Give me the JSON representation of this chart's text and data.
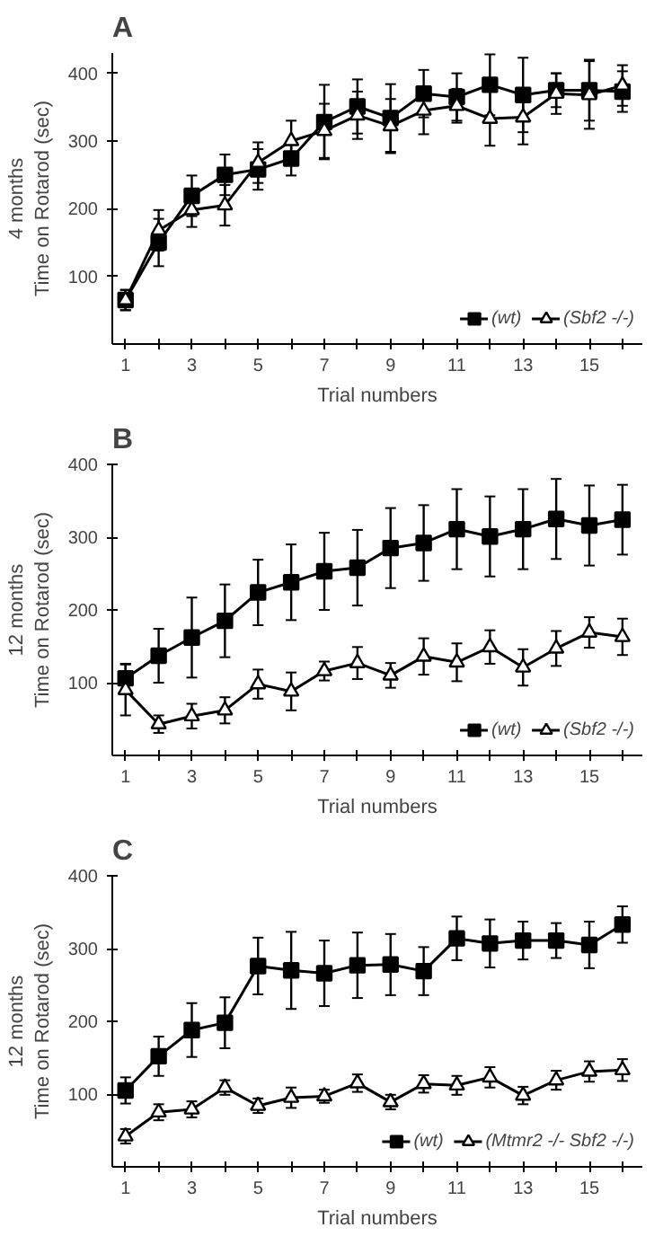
{
  "chart_data": [
    {
      "type": "line",
      "title": "A",
      "xlabel": "Trial numbers",
      "ylabel": "4 months\nTime on Rotarod (sec)",
      "x": [
        1,
        2,
        3,
        4,
        5,
        6,
        7,
        8,
        9,
        10,
        11,
        12,
        13,
        14,
        15,
        16
      ],
      "xlim": [
        0.6,
        16.6
      ],
      "ylim": [
        0,
        430
      ],
      "xticks": [
        1,
        {
          "value": 2,
          "label": null
        },
        3,
        {
          "value": 4,
          "label": null
        },
        5,
        {
          "value": 6,
          "label": null
        },
        7,
        {
          "value": 8,
          "label": null
        },
        9,
        {
          "value": 10,
          "label": null
        },
        11,
        {
          "value": 12,
          "label": null
        },
        13,
        {
          "value": 14,
          "label": null
        },
        15,
        {
          "value": 16,
          "label": null
        }
      ],
      "yticks": [
        100,
        200,
        300,
        400
      ],
      "legend": "bottom right",
      "grid": false,
      "series": [
        {
          "name": "(wt)",
          "color": "#000000",
          "marker": "square",
          "values": [
            65,
            150,
            219,
            250,
            258,
            274,
            328,
            351,
            334,
            370,
            365,
            383,
            368,
            375,
            375,
            373
          ],
          "errors": [
            15,
            35,
            30,
            30,
            30,
            25,
            55,
            40,
            50,
            35,
            35,
            45,
            55,
            25,
            45,
            30
          ]
        },
        {
          "name": "(Sbf2 -/-)",
          "color": "#000000",
          "marker": "triangle",
          "values": [
            65,
            168,
            198,
            205,
            268,
            300,
            315,
            338,
            322,
            345,
            352,
            333,
            335,
            370,
            368,
            382
          ],
          "errors": [
            15,
            30,
            25,
            30,
            30,
            30,
            40,
            35,
            40,
            35,
            25,
            40,
            40,
            30,
            50,
            30
          ]
        }
      ]
    },
    {
      "type": "line",
      "title": "B",
      "xlabel": "Trial numbers",
      "ylabel": "12 months\nTime on Rotarod (sec)",
      "x": [
        1,
        2,
        3,
        4,
        5,
        6,
        7,
        8,
        9,
        10,
        11,
        12,
        13,
        14,
        15,
        16
      ],
      "xlim": [
        0.6,
        16.6
      ],
      "ylim": [
        0,
        400
      ],
      "xticks": [
        1,
        {
          "value": 2,
          "label": null
        },
        3,
        {
          "value": 4,
          "label": null
        },
        5,
        {
          "value": 6,
          "label": null
        },
        7,
        {
          "value": 8,
          "label": null
        },
        9,
        {
          "value": 10,
          "label": null
        },
        11,
        {
          "value": 12,
          "label": null
        },
        13,
        {
          "value": 14,
          "label": null
        },
        15,
        {
          "value": 16,
          "label": null
        }
      ],
      "yticks": [
        100,
        200,
        300,
        400
      ],
      "legend": "bottom right",
      "grid": false,
      "series": [
        {
          "name": "(wt)",
          "color": "#000000",
          "marker": "square",
          "values": [
            106,
            137,
            162,
            185,
            224,
            238,
            253,
            258,
            285,
            292,
            311,
            301,
            311,
            325,
            316,
            324
          ],
          "errors": [
            20,
            37,
            55,
            50,
            45,
            52,
            53,
            52,
            55,
            52,
            55,
            55,
            55,
            55,
            55,
            48
          ]
        },
        {
          "name": "(Sbf2 -/-)",
          "color": "#000000",
          "marker": "triangle",
          "values": [
            90,
            43,
            54,
            62,
            98,
            88,
            116,
            127,
            110,
            136,
            128,
            149,
            121,
            147,
            169,
            163
          ],
          "errors": [
            35,
            12,
            17,
            18,
            20,
            26,
            13,
            22,
            17,
            25,
            26,
            23,
            25,
            24,
            21,
            25
          ]
        }
      ]
    },
    {
      "type": "line",
      "title": "C",
      "xlabel": "Trial numbers",
      "ylabel": "12 months\nTime on Rotarod (sec)",
      "x": [
        1,
        2,
        3,
        4,
        5,
        6,
        7,
        8,
        9,
        10,
        11,
        12,
        13,
        14,
        15,
        16
      ],
      "xlim": [
        0.6,
        16.6
      ],
      "ylim": [
        0,
        400
      ],
      "xticks": [
        1,
        {
          "value": 2,
          "label": null
        },
        3,
        {
          "value": 4,
          "label": null
        },
        5,
        {
          "value": 6,
          "label": null
        },
        7,
        {
          "value": 8,
          "label": null
        },
        9,
        {
          "value": 10,
          "label": null
        },
        11,
        {
          "value": 12,
          "label": null
        },
        13,
        {
          "value": 14,
          "label": null
        },
        15,
        {
          "value": 16,
          "label": null
        }
      ],
      "yticks": [
        100,
        200,
        300,
        400
      ],
      "legend": "bottom right",
      "grid": false,
      "series": [
        {
          "name": "(wt)",
          "color": "#000000",
          "marker": "square",
          "values": [
            105,
            152,
            188,
            198,
            276,
            270,
            266,
            277,
            278,
            269,
            314,
            307,
            311,
            311,
            305,
            333
          ],
          "errors": [
            18,
            27,
            37,
            35,
            39,
            53,
            45,
            45,
            42,
            33,
            30,
            33,
            26,
            24,
            32,
            25
          ]
        },
        {
          "name": "(Mtmr2 -/- Sbf2 -/-)",
          "color": "#000000",
          "marker": "triangle",
          "values": [
            42,
            75,
            79,
            109,
            84,
            95,
            97,
            115,
            89,
            114,
            112,
            123,
            98,
            119,
            131,
            133
          ],
          "errors": [
            10,
            11,
            11,
            10,
            10,
            14,
            9,
            12,
            10,
            12,
            13,
            14,
            12,
            13,
            14,
            15
          ]
        }
      ]
    }
  ]
}
